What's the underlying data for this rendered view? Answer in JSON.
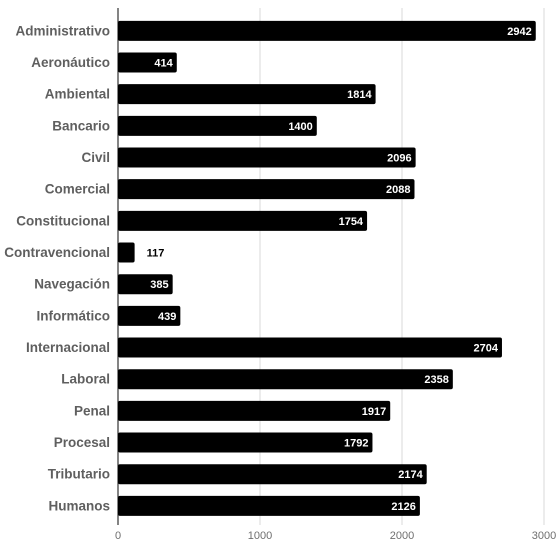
{
  "chart_data": {
    "type": "bar",
    "orientation": "horizontal",
    "categories": [
      "Administrativo",
      "Aeronáutico",
      "Ambiental",
      "Bancario",
      "Civil",
      "Comercial",
      "Constitucional",
      "Contravencional",
      "Navegación",
      "Informático",
      "Internacional",
      "Laboral",
      "Penal",
      "Procesal",
      "Tributario",
      "Humanos"
    ],
    "values": [
      2942,
      414,
      1814,
      1400,
      2096,
      2088,
      1754,
      117,
      385,
      439,
      2704,
      2358,
      1917,
      1792,
      2174,
      2126
    ],
    "xlim": [
      0,
      3000
    ],
    "xticks": [
      0,
      1000,
      2000,
      3000
    ],
    "grid": true,
    "bar_color": "#000000",
    "grid_color": "#d9d9d9",
    "title": "",
    "xlabel": "",
    "ylabel": ""
  }
}
